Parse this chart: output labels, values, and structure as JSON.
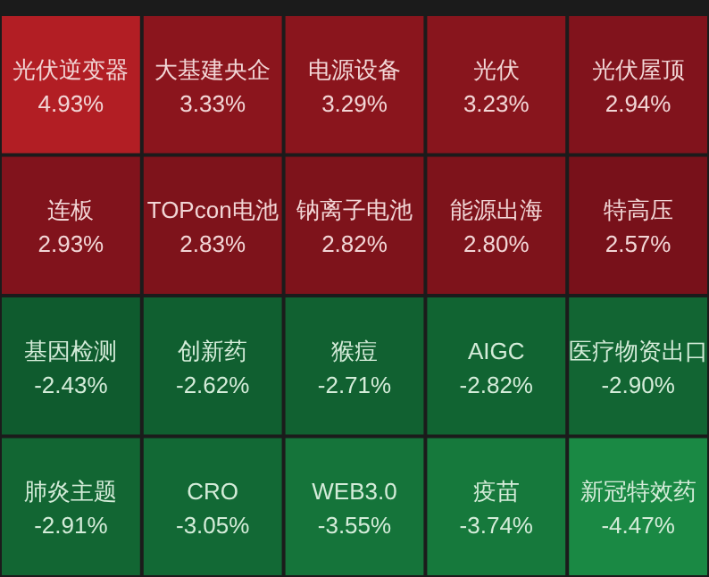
{
  "chart_data": {
    "type": "heatmap",
    "categories": [
      null,
      null,
      null,
      null,
      null
    ],
    "y_categories": [
      null,
      null,
      null,
      null
    ],
    "cells": [
      [
        4.93,
        3.33,
        3.29,
        3.23,
        2.94
      ],
      [
        2.93,
        2.83,
        2.82,
        2.8,
        2.57
      ],
      [
        -2.43,
        -2.62,
        -2.71,
        -2.82,
        -2.9
      ],
      [
        -2.91,
        -3.05,
        -3.55,
        -3.74,
        -4.47
      ]
    ],
    "cell_labels": [
      [
        "4.93%",
        "3.33%",
        "3.29%",
        "3.23%",
        "2.94%"
      ],
      [
        "2.93%",
        "2.83%",
        "2.82%",
        "2.80%",
        "2.57%"
      ],
      [
        "-2.43%",
        "-2.62%",
        "-2.71%",
        "-2.82%",
        "-2.90%"
      ],
      [
        "-2.91%",
        "-3.05%",
        "-3.55%",
        "-3.74%",
        "-4.47%"
      ]
    ],
    "annotations": [
      "光伏逆变器",
      "大基建央企",
      "电源设备",
      "光伏",
      "光伏屋顶",
      "连板",
      "TOPcon电池",
      "钠离子电池",
      "能源出海",
      "特高压",
      "基因检测",
      "创新药",
      "猴痘",
      "AIGC",
      "医疗物资出口",
      "肺炎主题",
      "CRO",
      "WEB3.0",
      "疫苗",
      "新冠特效药"
    ]
  }
}
